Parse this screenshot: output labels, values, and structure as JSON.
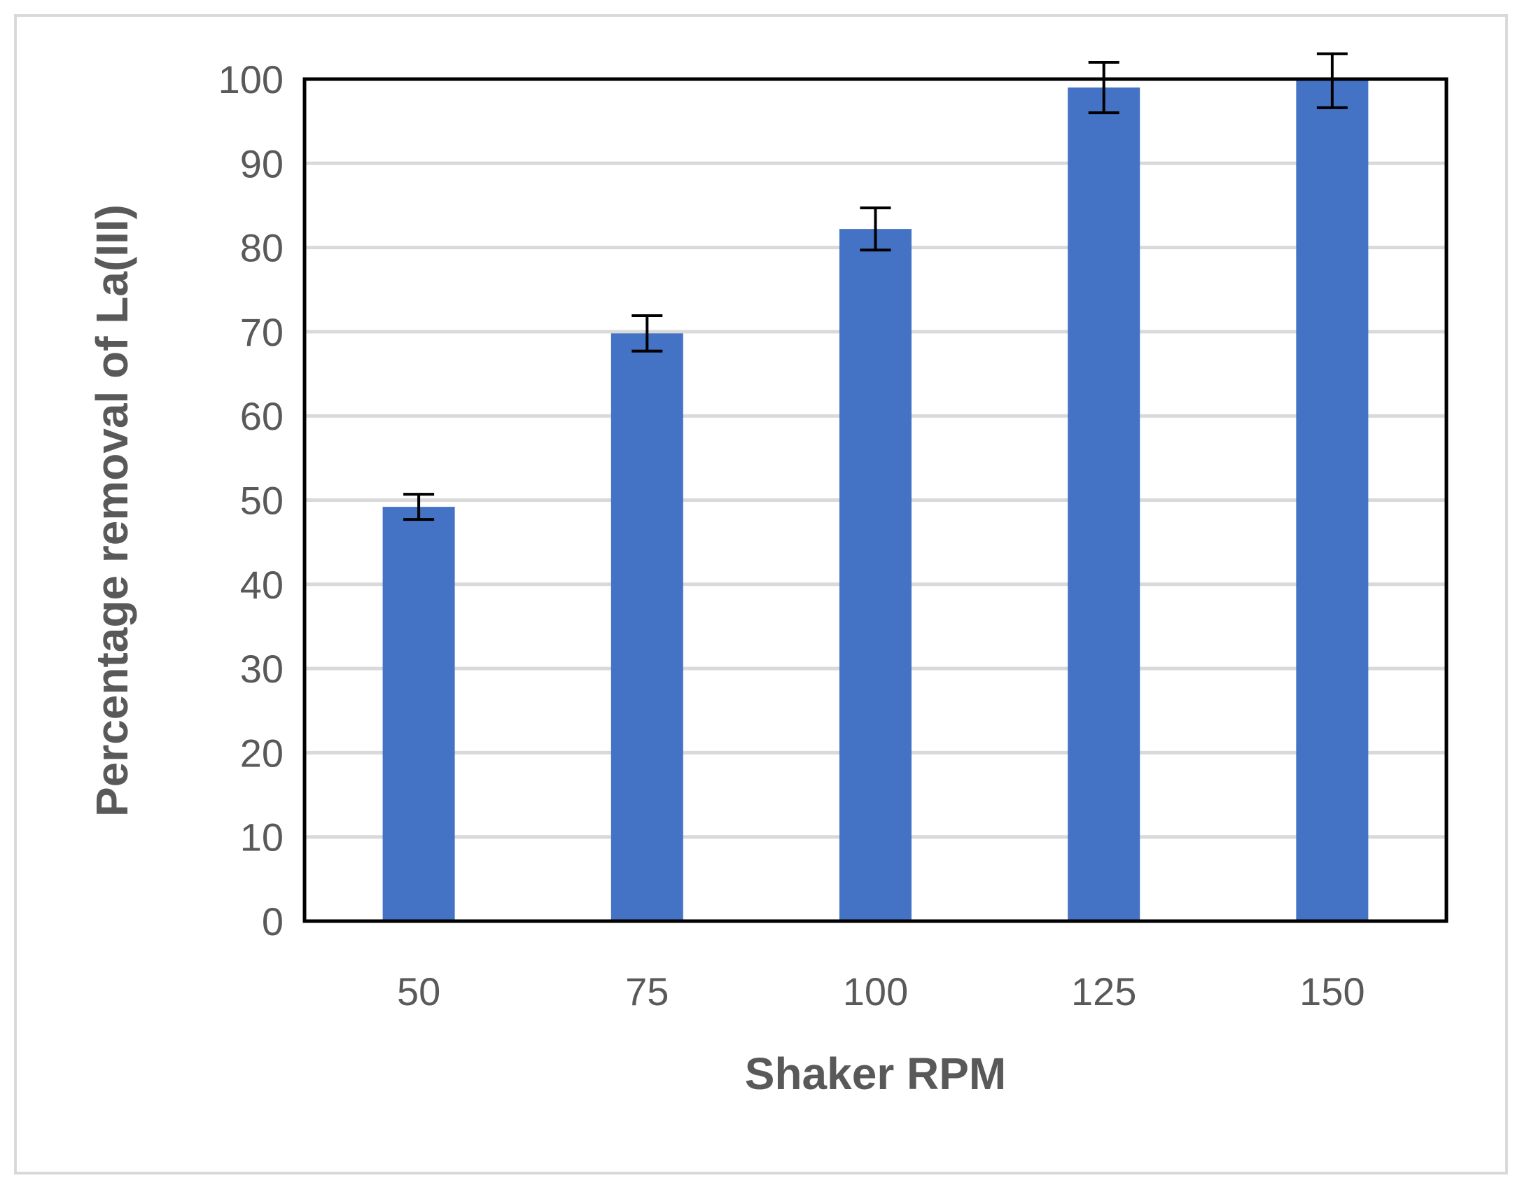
{
  "chart_data": {
    "type": "bar",
    "title": "",
    "xlabel": "Shaker RPM",
    "ylabel": "Percentage removal of La(III)",
    "categories": [
      "50",
      "75",
      "100",
      "125",
      "150"
    ],
    "series": [
      {
        "values": [
          49.2,
          69.8,
          82.2,
          99.0,
          99.8
        ],
        "error": [
          1.5,
          2.1,
          2.5,
          3.0,
          3.2
        ]
      }
    ],
    "ylim": [
      0,
      100
    ],
    "yticks": [
      "0",
      "10",
      "20",
      "30",
      "40",
      "50",
      "60",
      "70",
      "80",
      "90",
      "100"
    ],
    "grid": true,
    "legend": "none",
    "colors": {
      "bar": "#4472C4",
      "grid": "#D9D9D9",
      "axis": "#000000",
      "text": "#595959",
      "frame": "#D9D9D9"
    }
  }
}
